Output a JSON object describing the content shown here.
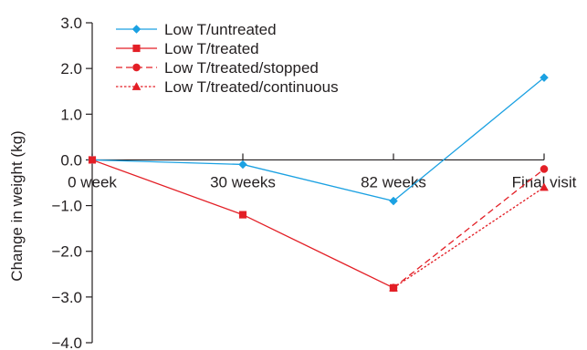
{
  "chart_data": {
    "type": "line",
    "title": "",
    "xlabel": "",
    "ylabel": "Change in weight (kg)",
    "categories": [
      "0 week",
      "30 weeks",
      "82 weeks",
      "Final visit"
    ],
    "ylim": [
      -4.0,
      3.0
    ],
    "yticks": [
      3.0,
      2.0,
      1.0,
      0.0,
      -1.0,
      -2.0,
      -3.0,
      -4.0
    ],
    "ytick_labels": [
      "3.0",
      "2.0",
      "1.0",
      "0.0",
      "−1.0",
      "−2.0",
      "−3.0",
      "−4.0"
    ],
    "grid": false,
    "legend_position": "top-left",
    "series": [
      {
        "name": "Low T/untreated",
        "color": "#1ba1e2",
        "marker": "diamond",
        "dash": "solid",
        "points": [
          {
            "x": "0 week",
            "y": 0.0
          },
          {
            "x": "30 weeks",
            "y": -0.1
          },
          {
            "x": "82 weeks",
            "y": -0.9
          },
          {
            "x": "Final visit",
            "y": 1.8
          }
        ]
      },
      {
        "name": "Low T/treated",
        "color": "#e31f26",
        "marker": "square",
        "dash": "solid",
        "points": [
          {
            "x": "0 week",
            "y": 0.0
          },
          {
            "x": "30 weeks",
            "y": -1.2
          },
          {
            "x": "82 weeks",
            "y": -2.8
          }
        ]
      },
      {
        "name": "Low T/treated/stopped",
        "color": "#e31f26",
        "marker": "circle",
        "dash": "dashed",
        "points": [
          {
            "x": "82 weeks",
            "y": -2.8
          },
          {
            "x": "Final visit",
            "y": -0.2
          }
        ]
      },
      {
        "name": "Low T/treated/continuous",
        "color": "#e31f26",
        "marker": "triangle",
        "dash": "dotted",
        "points": [
          {
            "x": "82 weeks",
            "y": -2.8
          },
          {
            "x": "Final visit",
            "y": -0.6
          }
        ]
      }
    ]
  }
}
